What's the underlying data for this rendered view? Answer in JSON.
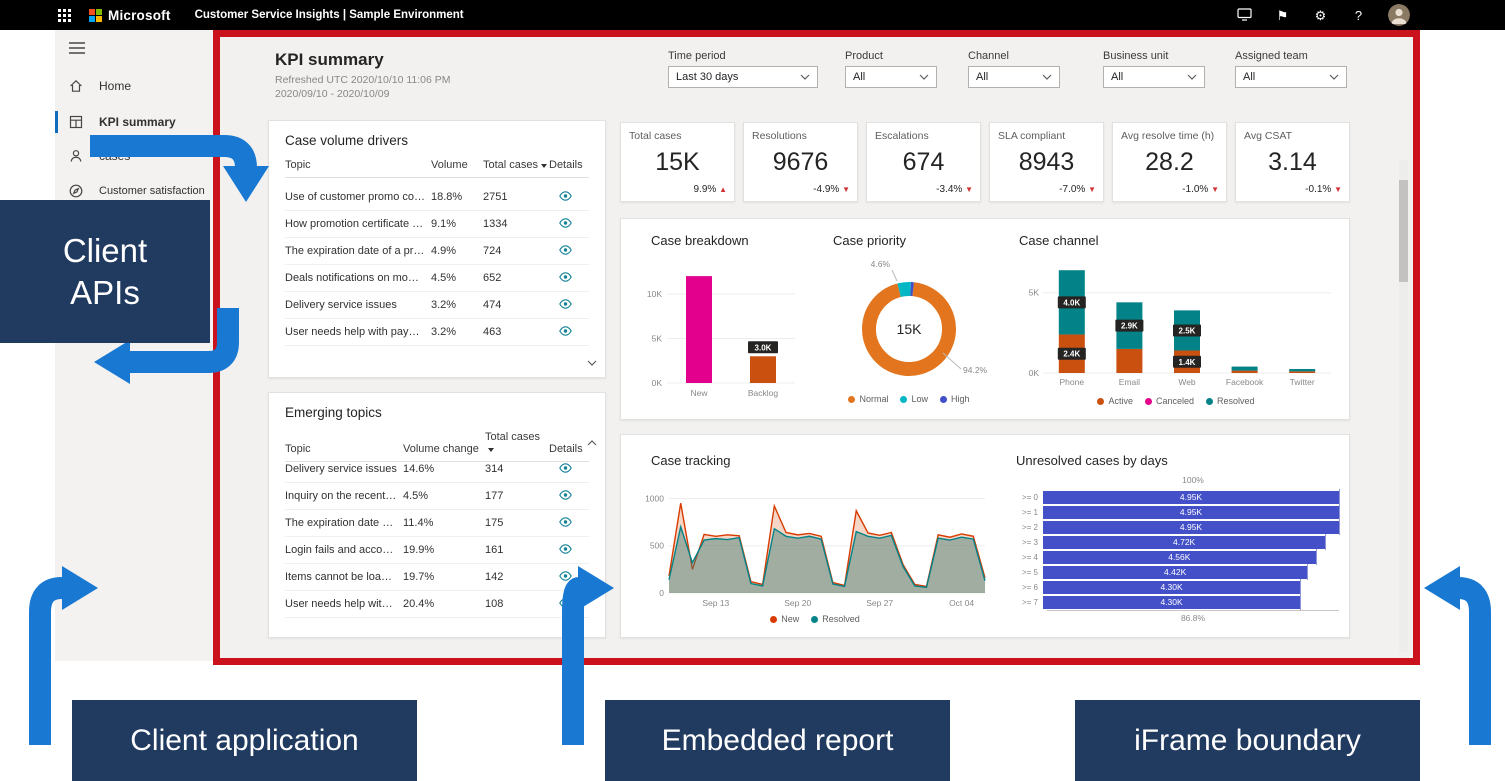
{
  "topbar": {
    "brand": "Microsoft",
    "app_title": "Customer Service Insights | Sample Environment",
    "icons": {
      "flag": "⚑",
      "gear": "⚙",
      "help": "?"
    }
  },
  "sidebar": {
    "items": [
      {
        "label": "Home",
        "icon": "home-icon"
      },
      {
        "label": "KPI summary",
        "icon": "kpi-grid-icon"
      },
      {
        "label": "cases",
        "icon": "person-icon"
      },
      {
        "label": "Customer satisfaction",
        "icon": "compass-icon"
      }
    ]
  },
  "report": {
    "title": "KPI summary",
    "refreshed": "Refreshed UTC 2020/10/10 11:06 PM",
    "date_range": "2020/09/10 - 2020/10/09",
    "filters": [
      {
        "label": "Time period",
        "value": "Last 30 days"
      },
      {
        "label": "Product",
        "value": "All"
      },
      {
        "label": "Channel",
        "value": "All"
      },
      {
        "label": "Business unit",
        "value": "All"
      },
      {
        "label": "Assigned team",
        "value": "All"
      }
    ],
    "kpis": [
      {
        "label": "Total cases",
        "value": "15K",
        "delta": "9.9%",
        "arrow": "▲"
      },
      {
        "label": "Resolutions",
        "value": "9676",
        "delta": "-4.9%",
        "arrow": "▼"
      },
      {
        "label": "Escalations",
        "value": "674",
        "delta": "-3.4%",
        "arrow": "▼"
      },
      {
        "label": "SLA compliant",
        "value": "8943",
        "delta": "-7.0%",
        "arrow": "▼"
      },
      {
        "label": "Avg resolve time (h)",
        "value": "28.2",
        "delta": "-1.0%",
        "arrow": "▼"
      },
      {
        "label": "Avg CSAT",
        "value": "3.14",
        "delta": "-0.1%",
        "arrow": "▼"
      }
    ],
    "drivers_table": {
      "title": "Case volume drivers",
      "columns": [
        "Topic",
        "Volume",
        "Total cases",
        "Details"
      ],
      "rows": [
        {
          "topic": "Use of customer promo code",
          "volume": "18.8%",
          "total": "2751"
        },
        {
          "topic": "How promotion certificate works...",
          "volume": "9.1%",
          "total": "1334"
        },
        {
          "topic": "The expiration date of a promoti...",
          "volume": "4.9%",
          "total": "724"
        },
        {
          "topic": "Deals notifications on mobile",
          "volume": "4.5%",
          "total": "652"
        },
        {
          "topic": "Delivery service issues",
          "volume": "3.2%",
          "total": "474"
        },
        {
          "topic": "User needs help with payment is...",
          "volume": "3.2%",
          "total": "463"
        }
      ]
    },
    "emerging_table": {
      "title": "Emerging topics",
      "columns": [
        "Topic",
        "Volume change",
        "Total cases",
        "Details"
      ],
      "rows": [
        {
          "topic": "Delivery service issues",
          "volume": "14.6%",
          "total": "314"
        },
        {
          "topic": "Inquiry on the recent d...",
          "volume": "4.5%",
          "total": "177"
        },
        {
          "topic": "The expiration date of a...",
          "volume": "11.4%",
          "total": "175"
        },
        {
          "topic": "Login fails and account ...",
          "volume": "19.9%",
          "total": "161"
        },
        {
          "topic": "Items cannot be loaded...",
          "volume": "19.7%",
          "total": "142"
        },
        {
          "topic": "User needs help with p...",
          "volume": "20.4%",
          "total": "108"
        }
      ]
    }
  },
  "annotations": {
    "client_apis": "Client APIs",
    "client_application": "Client application",
    "embedded_report": "Embedded report",
    "iframe_boundary": "iFrame boundary"
  },
  "chart_data": [
    {
      "id": "case-breakdown",
      "type": "bar",
      "title": "Case breakdown",
      "categories": [
        "New",
        "Backlog"
      ],
      "values": [
        12000,
        3000
      ],
      "colors": [
        "#e3008c",
        "#ca5010"
      ],
      "data_labels": [
        null,
        "3.0K"
      ],
      "ylim": [
        0,
        12800
      ],
      "yticks": [
        {
          "v": 0,
          "label": "0K"
        },
        {
          "v": 5000,
          "label": "5K"
        },
        {
          "v": 10000,
          "label": "10K"
        }
      ]
    },
    {
      "id": "case-priority",
      "type": "donut",
      "title": "Case priority",
      "center_label": "15K",
      "slices": [
        {
          "name": "Normal",
          "pct": 94.2,
          "color": "#e2751d"
        },
        {
          "name": "Low",
          "pct": 4.6,
          "color": "#00b7c3"
        },
        {
          "name": "High",
          "pct": 1.2,
          "color": "#4150c9"
        }
      ],
      "callouts": [
        "4.6%",
        "94.2%"
      ]
    },
    {
      "id": "case-channel",
      "type": "stacked_bar",
      "title": "Case channel",
      "categories": [
        "Phone",
        "Email",
        "Web",
        "Facebook",
        "Twitter"
      ],
      "series": [
        {
          "name": "Active",
          "color": "#ca5010",
          "values": [
            2400,
            1500,
            1400,
            150,
            100
          ],
          "labels": [
            "2.4K",
            null,
            "1.4K",
            null,
            null
          ]
        },
        {
          "name": "Canceled",
          "color": "#e3008c",
          "values": [
            0,
            0,
            0,
            0,
            0
          ],
          "labels": [
            null,
            null,
            null,
            null,
            null
          ]
        },
        {
          "name": "Resolved",
          "color": "#038387",
          "values": [
            4000,
            2900,
            2500,
            250,
            150
          ],
          "labels": [
            "4.0K",
            "2.9K",
            "2.5K",
            null,
            null
          ]
        }
      ],
      "ylim": [
        0,
        6600
      ],
      "yticks": [
        {
          "v": 0,
          "label": "0K"
        },
        {
          "v": 5000,
          "label": "5K"
        }
      ]
    },
    {
      "id": "case-tracking",
      "type": "area_line",
      "title": "Case tracking",
      "x_ticks": [
        "Sep 13",
        "Sep 20",
        "Sep 27",
        "Oct 04"
      ],
      "x_tick_idx": [
        4,
        11,
        18,
        25
      ],
      "ylim": [
        0,
        1100
      ],
      "yticks": [
        {
          "v": 0,
          "label": "0"
        },
        {
          "v": 500,
          "label": "500"
        },
        {
          "v": 1000,
          "label": "1000"
        }
      ],
      "series": [
        {
          "name": "New",
          "color": "#d83b01",
          "fill": "rgba(216,92,32,0.25)",
          "values": [
            180,
            950,
            250,
            620,
            600,
            615,
            605,
            120,
            90,
            920,
            640,
            615,
            630,
            600,
            110,
            80,
            870,
            635,
            610,
            640,
            300,
            90,
            70,
            615,
            590,
            625,
            600,
            160
          ]
        },
        {
          "name": "Resolved",
          "color": "#038387",
          "fill": "rgba(63,124,118,0.45)",
          "values": [
            140,
            700,
            320,
            560,
            575,
            565,
            585,
            100,
            75,
            680,
            600,
            580,
            600,
            570,
            95,
            70,
            650,
            600,
            580,
            610,
            280,
            75,
            60,
            580,
            560,
            590,
            570,
            130
          ]
        }
      ]
    },
    {
      "id": "unresolved-cases",
      "type": "funnel",
      "title": "Unresolved cases by days",
      "categories": [
        ">= 0",
        ">= 1",
        ">= 2",
        ">= 3",
        ">= 4",
        ">= 5",
        ">= 6",
        ">= 7"
      ],
      "values": [
        4950,
        4950,
        4950,
        4720,
        4560,
        4420,
        4300,
        4300
      ],
      "labels": [
        "4.95K",
        "4.95K",
        "4.95K",
        "4.72K",
        "4.56K",
        "4.42K",
        "4.30K",
        "4.30K"
      ],
      "color": "#4450c8",
      "top_annotation": "100%",
      "bottom_annotation": "86.8%"
    }
  ]
}
